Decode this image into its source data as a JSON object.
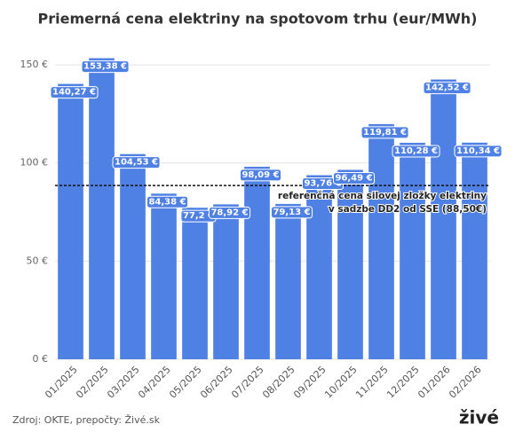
{
  "chart_data": {
    "type": "bar",
    "title": "Priemerná cena elektriny na spotovom trhu (eur/MWh)",
    "categories": [
      "01/2025",
      "02/2025",
      "03/2025",
      "04/2025",
      "05/2025",
      "06/2025",
      "07/2025",
      "08/2025",
      "09/2025",
      "10/2025",
      "11/2025",
      "12/2025",
      "01/2026",
      "02/2026"
    ],
    "values": [
      140.27,
      153.38,
      104.53,
      84.38,
      77.2,
      78.92,
      98.09,
      79.13,
      93.76,
      96.49,
      119.81,
      110.28,
      142.52,
      110.34
    ],
    "value_labels": [
      "140,27 €",
      "153,38 €",
      "104,53 €",
      "84,38 €",
      "77,2 €",
      "78,92 €",
      "98,09 €",
      "79,13 €",
      "93,76 €",
      "96,49 €",
      "119,81 €",
      "110,28 €",
      "142,52 €",
      "110,34 €"
    ],
    "color": "#4f81e5",
    "ylim": [
      0,
      155
    ],
    "yticks": [
      {
        "value": 0,
        "label": "0 €"
      },
      {
        "value": 50,
        "label": "50 €"
      },
      {
        "value": 100,
        "label": "100 €"
      },
      {
        "value": 150,
        "label": "150 €"
      }
    ],
    "grid": true,
    "reference_line": {
      "value": 88.5,
      "label": [
        "referenčná cena silovej zložky elektriny",
        "v sadzbe DD2 od SSE (88,50€)"
      ]
    },
    "source": "Zdroj: OKTE, prepočty: Živé.sk",
    "logo": "živé"
  }
}
